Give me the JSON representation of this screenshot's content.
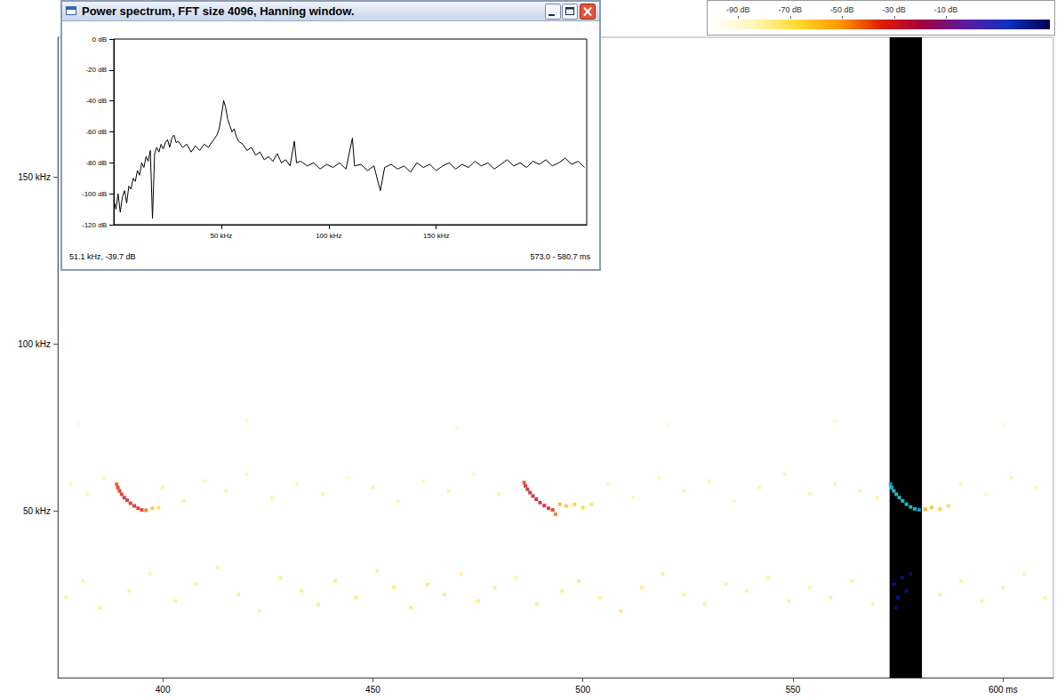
{
  "chart_data": [
    {
      "type": "heatmap",
      "xlim": [
        375,
        612
      ],
      "xticks": [
        400,
        450,
        500,
        550,
        {
          "value": 600,
          "label": "600 ms"
        }
      ],
      "ylim": [
        0,
        192
      ],
      "yticks": [
        {
          "value": 50,
          "label": "50 kHz"
        },
        {
          "value": 100,
          "label": "100 kHz"
        },
        {
          "value": 150,
          "label": "150 kHz"
        }
      ],
      "selection": [
        573.0,
        580.7
      ],
      "colorbar": {
        "range": [
          -100,
          30
        ],
        "ticks": [
          {
            "value": -90,
            "label": "-90 dB"
          },
          {
            "value": -70,
            "label": "-70 dB"
          },
          {
            "value": -50,
            "label": "-50 dB"
          },
          {
            "value": -30,
            "label": "-30 dB"
          },
          {
            "value": -10,
            "label": "-10 dB"
          }
        ]
      },
      "cells": [
        [
          389.0,
          58,
          -40
        ],
        [
          389.3,
          57,
          -35
        ],
        [
          389.7,
          56,
          -33
        ],
        [
          390.2,
          55,
          -32
        ],
        [
          390.8,
          54,
          -30
        ],
        [
          391.5,
          53.2,
          -30
        ],
        [
          392.3,
          52.3,
          -31
        ],
        [
          393.2,
          51.5,
          -32
        ],
        [
          394.1,
          50.8,
          -33
        ],
        [
          395.0,
          50.3,
          -35
        ],
        [
          396.0,
          50.2,
          -45
        ],
        [
          397.5,
          50.8,
          -60
        ],
        [
          399.0,
          51,
          -70
        ],
        [
          486.0,
          58.5,
          -38
        ],
        [
          486.3,
          57.5,
          -32
        ],
        [
          486.8,
          56.5,
          -28
        ],
        [
          487.4,
          55.5,
          -25
        ],
        [
          488.1,
          54.5,
          -24
        ],
        [
          488.9,
          53.5,
          -24
        ],
        [
          489.8,
          52.5,
          -25
        ],
        [
          490.8,
          51.6,
          -26
        ],
        [
          491.8,
          50.8,
          -28
        ],
        [
          492.8,
          50.3,
          -32
        ],
        [
          493.5,
          49,
          -45
        ],
        [
          494.5,
          52,
          -55
        ],
        [
          496.0,
          51.5,
          -60
        ],
        [
          498.0,
          52,
          -62
        ],
        [
          500.0,
          51,
          -65
        ],
        [
          502.0,
          52,
          -70
        ],
        [
          573.2,
          58,
          -40
        ],
        [
          573.5,
          57,
          -35
        ],
        [
          574.0,
          56,
          -32
        ],
        [
          574.6,
          55,
          -30
        ],
        [
          575.3,
          54,
          -30
        ],
        [
          576.1,
          53,
          -31
        ],
        [
          577.0,
          52,
          -32
        ],
        [
          578.0,
          51.2,
          -33
        ],
        [
          579.0,
          50.6,
          -35
        ],
        [
          580.0,
          50.3,
          -40
        ],
        [
          574.0,
          28,
          -72
        ],
        [
          575.0,
          24,
          -70
        ],
        [
          576.0,
          30,
          -74
        ],
        [
          577.0,
          26,
          -71
        ],
        [
          574.5,
          21,
          -76
        ],
        [
          578.0,
          31,
          -75
        ],
        [
          581.5,
          50.5,
          -55
        ],
        [
          583.0,
          51,
          -58
        ],
        [
          585.0,
          50.5,
          -62
        ],
        [
          587.0,
          51.5,
          -66
        ],
        [
          378,
          58,
          -82
        ],
        [
          382,
          55,
          -80
        ],
        [
          386,
          60,
          -84
        ],
        [
          400,
          57,
          -82
        ],
        [
          405,
          53,
          -80
        ],
        [
          410,
          59,
          -83
        ],
        [
          415,
          56,
          -81
        ],
        [
          420,
          61,
          -84
        ],
        [
          426,
          54,
          -80
        ],
        [
          432,
          58,
          -82
        ],
        [
          438,
          55,
          -81
        ],
        [
          444,
          60,
          -83
        ],
        [
          450,
          57,
          -80
        ],
        [
          456,
          53,
          -82
        ],
        [
          462,
          59,
          -84
        ],
        [
          468,
          56,
          -81
        ],
        [
          474,
          61,
          -83
        ],
        [
          480,
          55,
          -80
        ],
        [
          506,
          58,
          -82
        ],
        [
          512,
          54,
          -81
        ],
        [
          518,
          60,
          -83
        ],
        [
          524,
          56,
          -80
        ],
        [
          530,
          59,
          -82
        ],
        [
          536,
          53,
          -84
        ],
        [
          542,
          57,
          -81
        ],
        [
          548,
          61,
          -83
        ],
        [
          554,
          55,
          -80
        ],
        [
          560,
          58,
          -82
        ],
        [
          566,
          56,
          -79
        ],
        [
          570,
          54,
          -78
        ],
        [
          590,
          58,
          -80
        ],
        [
          596,
          55,
          -82
        ],
        [
          602,
          60,
          -81
        ],
        [
          608,
          57,
          -83
        ],
        [
          377,
          24,
          -78
        ],
        [
          381,
          29,
          -80
        ],
        [
          385,
          21,
          -77
        ],
        [
          392,
          26,
          -79
        ],
        [
          397,
          31,
          -81
        ],
        [
          403,
          23,
          -77
        ],
        [
          408,
          28,
          -76
        ],
        [
          413,
          33,
          -80
        ],
        [
          418,
          25,
          -77
        ],
        [
          423,
          20,
          -79
        ],
        [
          428,
          30,
          -75
        ],
        [
          433,
          26,
          -74
        ],
        [
          437,
          22,
          -76
        ],
        [
          441,
          29,
          -74
        ],
        [
          446,
          24,
          -75
        ],
        [
          451,
          32,
          -78
        ],
        [
          455,
          27,
          -74
        ],
        [
          459,
          21,
          -76
        ],
        [
          463,
          28,
          -73
        ],
        [
          467,
          25,
          -75
        ],
        [
          471,
          31,
          -77
        ],
        [
          475,
          23,
          -74
        ],
        [
          479,
          27,
          -76
        ],
        [
          484,
          30,
          -78
        ],
        [
          489,
          22,
          -75
        ],
        [
          495,
          26,
          -74
        ],
        [
          499,
          29,
          -76
        ],
        [
          504,
          24,
          -77
        ],
        [
          509,
          20,
          -75
        ],
        [
          514,
          27,
          -76
        ],
        [
          519,
          31,
          -78
        ],
        [
          524,
          25,
          -77
        ],
        [
          529,
          22,
          -79
        ],
        [
          534,
          28,
          -76
        ],
        [
          539,
          26,
          -78
        ],
        [
          544,
          30,
          -77
        ],
        [
          549,
          23,
          -79
        ],
        [
          554,
          27,
          -78
        ],
        [
          559,
          24,
          -80
        ],
        [
          564,
          29,
          -78
        ],
        [
          569,
          22,
          -79
        ],
        [
          585,
          25,
          -77
        ],
        [
          590,
          29,
          -78
        ],
        [
          595,
          23,
          -79
        ],
        [
          600,
          27,
          -77
        ],
        [
          605,
          31,
          -80
        ],
        [
          610,
          24,
          -78
        ],
        [
          380,
          76,
          -88
        ],
        [
          420,
          77,
          -88
        ],
        [
          470,
          75,
          -88
        ],
        [
          520,
          76,
          -88
        ],
        [
          560,
          77,
          -88
        ],
        [
          600,
          76,
          -88
        ]
      ]
    },
    {
      "type": "line",
      "title": "Power spectrum, FFT size 4096, Hanning window.",
      "color": "#000000",
      "xlim": [
        0,
        220
      ],
      "xticks": [
        {
          "value": 50,
          "label": "50 kHz"
        },
        {
          "value": 100,
          "label": "100 kHz"
        },
        {
          "value": 150,
          "label": "150 kHz"
        }
      ],
      "ylim": [
        -120,
        0
      ],
      "yticks": [
        {
          "value": 0,
          "label": "0 dB"
        },
        {
          "value": -20,
          "label": "-20 dB"
        },
        {
          "value": -40,
          "label": "-40 dB"
        },
        {
          "value": -60,
          "label": "-60 dB"
        },
        {
          "value": -80,
          "label": "-80 dB"
        },
        {
          "value": -100,
          "label": "-100 dB"
        },
        {
          "value": -120,
          "label": "-120 dB"
        }
      ],
      "annotations": [
        "51.1 kHz, -39.7 dB",
        "573.0 - 580.7 ms"
      ],
      "x": [
        0,
        1,
        2,
        3,
        4,
        5,
        6,
        7,
        8,
        9,
        10,
        11,
        12,
        13,
        14,
        15,
        16,
        17,
        18,
        19,
        20,
        21,
        22,
        23,
        24,
        25,
        26,
        27,
        28,
        29,
        30,
        32,
        34,
        36,
        38,
        40,
        42,
        44,
        46,
        48,
        49,
        50,
        51.1,
        52,
        53,
        54,
        55,
        56,
        57,
        58,
        60,
        62,
        64,
        66,
        68,
        70,
        72,
        74,
        76,
        78,
        80,
        82,
        84,
        85,
        87,
        90,
        93,
        96,
        99,
        102,
        105,
        108,
        111,
        112,
        115,
        118,
        121,
        124,
        126,
        129,
        132,
        135,
        138,
        141,
        144,
        147,
        150,
        153,
        156,
        159,
        162,
        165,
        168,
        171,
        174,
        177,
        180,
        183,
        186,
        189,
        192,
        195,
        198,
        201,
        204,
        207,
        210,
        213,
        216,
        219
      ],
      "values": [
        -104,
        -110,
        -100,
        -112,
        -102,
        -98,
        -106,
        -95,
        -97,
        -90,
        -92,
        -85,
        -88,
        -80,
        -83,
        -76,
        -79,
        -72,
        -116,
        -74,
        -70,
        -73,
        -68,
        -71,
        -67,
        -65,
        -70,
        -64,
        -62,
        -67,
        -66,
        -70,
        -68,
        -73,
        -69,
        -72,
        -68,
        -70,
        -66,
        -62,
        -58,
        -50,
        -39.7,
        -44,
        -52,
        -56,
        -60,
        -58,
        -63,
        -66,
        -68,
        -72,
        -70,
        -75,
        -73,
        -78,
        -76,
        -79,
        -74,
        -80,
        -78,
        -82,
        -66,
        -80,
        -79,
        -82,
        -80,
        -84,
        -81,
        -83,
        -80,
        -84,
        -64,
        -82,
        -81,
        -85,
        -82,
        -98,
        -83,
        -81,
        -84,
        -82,
        -86,
        -80,
        -83,
        -81,
        -85,
        -82,
        -80,
        -84,
        -81,
        -83,
        -79,
        -82,
        -80,
        -84,
        -81,
        -78,
        -82,
        -80,
        -83,
        -79,
        -81,
        -78,
        -82,
        -80,
        -77,
        -81,
        -79,
        -83
      ]
    }
  ]
}
